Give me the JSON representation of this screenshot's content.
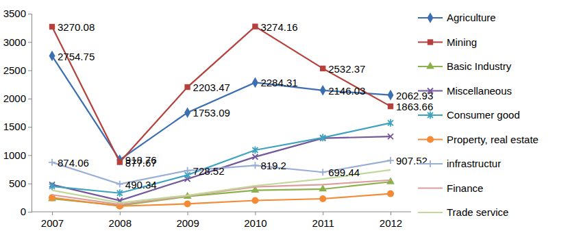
{
  "chart_data": {
    "type": "line",
    "categories": [
      "2007",
      "2008",
      "2009",
      "2010",
      "2011",
      "2012"
    ],
    "ylim": [
      0,
      3500
    ],
    "yticks": [
      0,
      500,
      1000,
      1500,
      2000,
      2500,
      3000,
      3500
    ],
    "grid": false,
    "legend": "right",
    "series": [
      {
        "name": "Agriculture",
        "color": "#3d6fb0",
        "marker": "diamond",
        "data_labels": true,
        "values": [
          2754.75,
          918.76,
          1753.09,
          2284.31,
          2146.03,
          2062.93
        ]
      },
      {
        "name": "Mining",
        "color": "#b5403c",
        "marker": "square",
        "data_labels": true,
        "values": [
          3270.08,
          877.67,
          2203.47,
          3274.16,
          2532.37,
          1863.66
        ]
      },
      {
        "name": "Basic Industry",
        "color": "#8cb04a",
        "marker": "triangle",
        "values": [
          230,
          110,
          270,
          380,
          400,
          530
        ]
      },
      {
        "name": "Miscellaneous",
        "color": "#73579a",
        "marker": "x",
        "values": [
          480,
          200,
          580,
          970,
          1300,
          1330
        ]
      },
      {
        "name": "Consumer good",
        "color": "#3ea3bf",
        "marker": "asterisk",
        "values": [
          450,
          330,
          650,
          1090,
          1310,
          1570
        ]
      },
      {
        "name": "Property, real estate",
        "color": "#f28a36",
        "marker": "circle",
        "values": [
          250,
          100,
          140,
          200,
          230,
          320
        ]
      },
      {
        "name": "infrastructur",
        "color": "#9aaed6",
        "marker": "plus",
        "data_labels": true,
        "values": [
          874.06,
          490.34,
          728.52,
          819.2,
          699.44,
          907.52
        ]
      },
      {
        "name": "Finance",
        "color": "#dc9e9c",
        "marker": "none",
        "values": [
          300,
          130,
          280,
          440,
          480,
          560
        ]
      },
      {
        "name": "Trade service",
        "color": "#c2d89a",
        "marker": "none",
        "values": [
          380,
          160,
          290,
          460,
          580,
          740
        ]
      }
    ]
  }
}
